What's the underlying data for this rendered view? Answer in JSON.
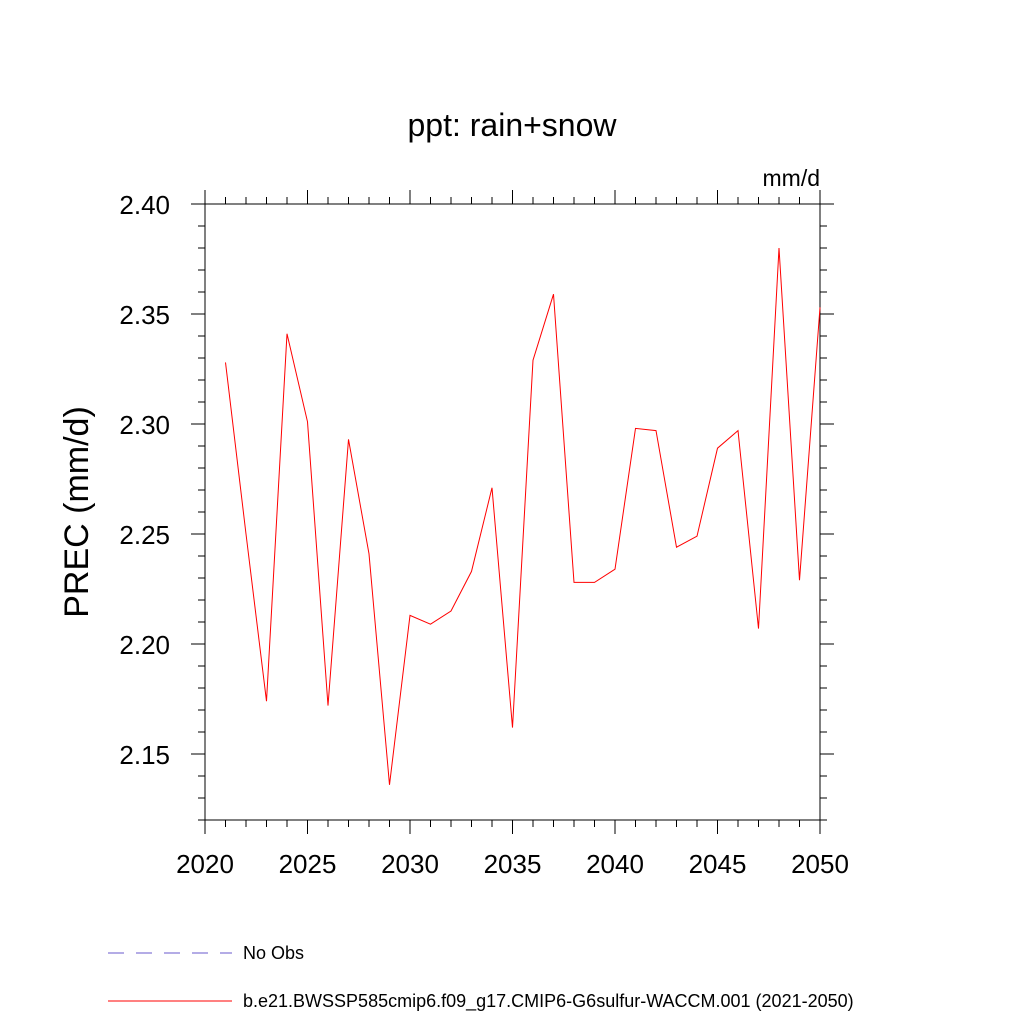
{
  "chart_data": {
    "type": "line",
    "title": "ppt: rain+snow",
    "units": "mm/d",
    "ylabel": "PREC  (mm/d)",
    "xlabel": "",
    "xlim": [
      2020,
      2050
    ],
    "ylim": [
      2.12,
      2.4
    ],
    "x_ticks": [
      2020,
      2025,
      2030,
      2035,
      2040,
      2045,
      2050
    ],
    "y_ticks": [
      2.15,
      2.2,
      2.25,
      2.3,
      2.35,
      2.4
    ],
    "x_tick_labels": [
      "2020",
      "2025",
      "2030",
      "2035",
      "2040",
      "2045",
      "2050"
    ],
    "y_tick_labels": [
      "2.15",
      "2.20",
      "2.25",
      "2.30",
      "2.35",
      "2.40"
    ],
    "grid": false,
    "legend_position": "bottom-left",
    "series": [
      {
        "name": "b.e21.BWSSP585cmip6.f09_g17.CMIP6-G6sulfur-WACCM.001 (2021-2050)",
        "color": "#ff0000",
        "style": "solid",
        "x": [
          2021,
          2022,
          2023,
          2024,
          2025,
          2026,
          2027,
          2028,
          2029,
          2030,
          2031,
          2032,
          2033,
          2034,
          2035,
          2036,
          2037,
          2038,
          2039,
          2040,
          2041,
          2042,
          2043,
          2044,
          2045,
          2046,
          2047,
          2048,
          2049,
          2050
        ],
        "values": [
          2.328,
          2.25,
          2.174,
          2.341,
          2.301,
          2.172,
          2.293,
          2.241,
          2.136,
          2.213,
          2.209,
          2.215,
          2.233,
          2.271,
          2.162,
          2.329,
          2.359,
          2.228,
          2.228,
          2.234,
          2.298,
          2.297,
          2.244,
          2.249,
          2.289,
          2.297,
          2.207,
          2.38,
          2.229,
          2.353
        ]
      }
    ],
    "legend": [
      {
        "label": "No Obs",
        "color": "#6a5acd",
        "style": "dashed"
      },
      {
        "label": "b.e21.BWSSP585cmip6.f09_g17.CMIP6-G6sulfur-WACCM.001 (2021-2050)",
        "color": "#ff0000",
        "style": "solid"
      }
    ]
  }
}
